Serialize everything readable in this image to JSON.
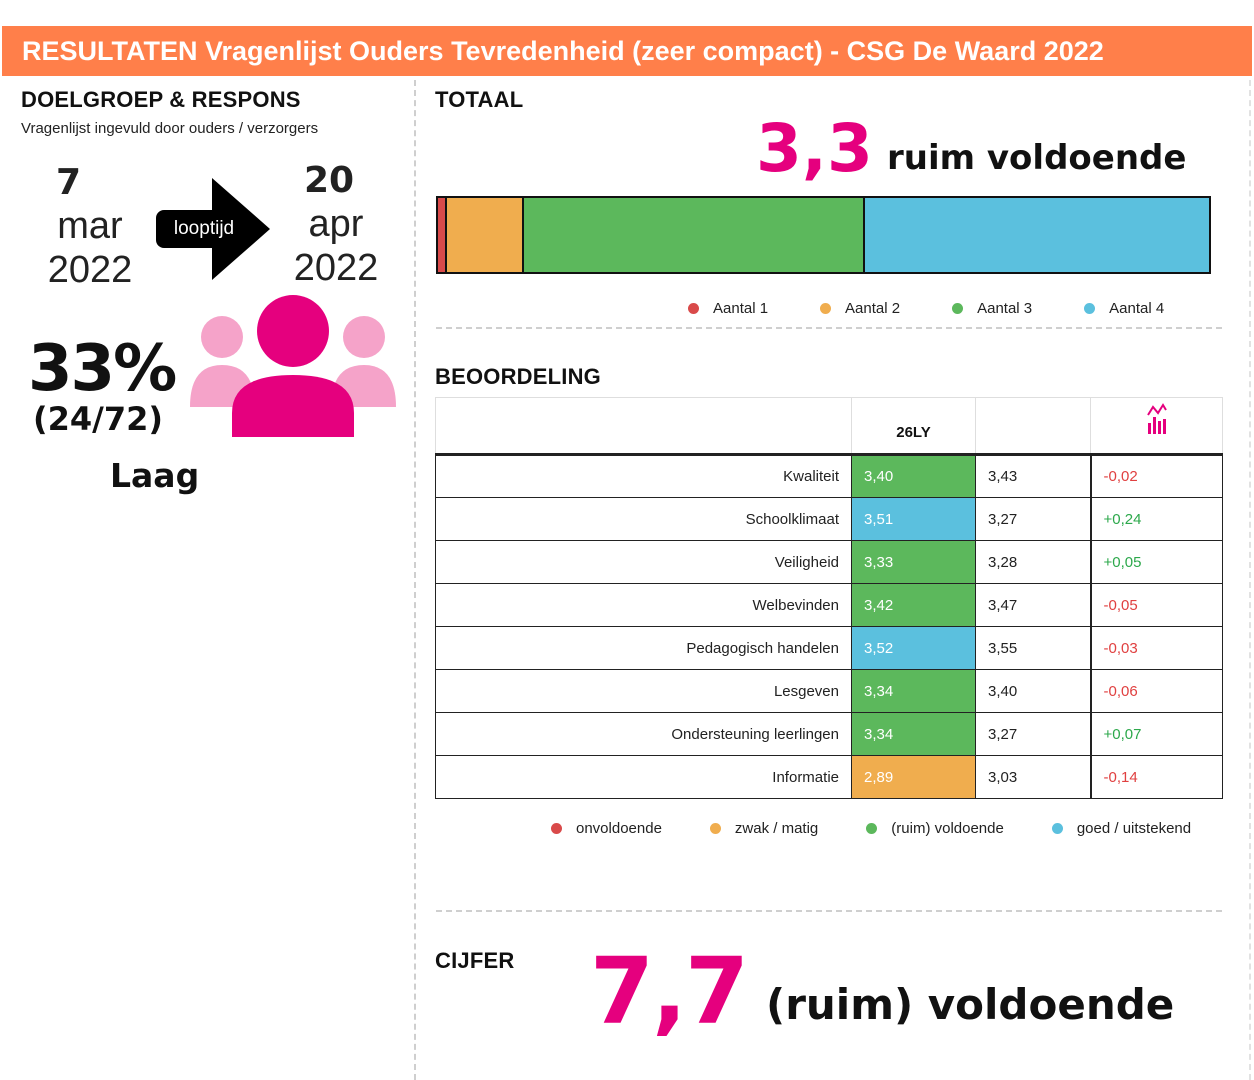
{
  "header": {
    "title": "RESULTATEN Vragenlijst Ouders Tevredenheid (zeer compact) - CSG De Waard 2022"
  },
  "left": {
    "title": "DOELGROEP & RESPONS",
    "subtitle": "Vragenlijst ingevuld door ouders / verzorgers",
    "start": {
      "day": "7",
      "month": "mar",
      "year": "2022"
    },
    "end": {
      "day": "20",
      "month": "apr",
      "year": "2022"
    },
    "arrow_label": "looptijd",
    "response_pct": "33%",
    "response_count": "(24/72)",
    "response_level": "Laag",
    "people_icon": "people-group-icon"
  },
  "totaal": {
    "title": "TOTAAL",
    "score": "3,3",
    "label": "ruim voldoende",
    "bar": [
      {
        "name": "Aantal 1",
        "value": 1.2,
        "color": "#d94a4a"
      },
      {
        "name": "Aantal 2",
        "value": 10,
        "color": "#f0ad4e"
      },
      {
        "name": "Aantal 3",
        "value": 44.2,
        "color": "#5cb85c"
      },
      {
        "name": "Aantal 4",
        "value": 44.6,
        "color": "#5bc0de"
      }
    ]
  },
  "beoordeling": {
    "title": "BEOORDELING",
    "col_header": "26LY",
    "trend_icon": "chart-trend-icon",
    "rows": [
      {
        "label": "Kwaliteit",
        "score": "3,40",
        "prev": "3,43",
        "diff": "-0,02",
        "color": "#5cb85c",
        "sign": "neg"
      },
      {
        "label": "Schoolklimaat",
        "score": "3,51",
        "prev": "3,27",
        "diff": "+0,24",
        "color": "#5bc0de",
        "sign": "pos"
      },
      {
        "label": "Veiligheid",
        "score": "3,33",
        "prev": "3,28",
        "diff": "+0,05",
        "color": "#5cb85c",
        "sign": "pos"
      },
      {
        "label": "Welbevinden",
        "score": "3,42",
        "prev": "3,47",
        "diff": "-0,05",
        "color": "#5cb85c",
        "sign": "neg"
      },
      {
        "label": "Pedagogisch handelen",
        "score": "3,52",
        "prev": "3,55",
        "diff": "-0,03",
        "color": "#5bc0de",
        "sign": "neg"
      },
      {
        "label": "Lesgeven",
        "score": "3,34",
        "prev": "3,40",
        "diff": "-0,06",
        "color": "#5cb85c",
        "sign": "neg"
      },
      {
        "label": "Ondersteuning leerlingen",
        "score": "3,34",
        "prev": "3,27",
        "diff": "+0,07",
        "color": "#5cb85c",
        "sign": "pos"
      },
      {
        "label": "Informatie",
        "score": "2,89",
        "prev": "3,03",
        "diff": "-0,14",
        "color": "#f0ad4e",
        "sign": "neg"
      }
    ],
    "legend": [
      {
        "name": "onvoldoende",
        "color": "#d94a4a"
      },
      {
        "name": "zwak / matig",
        "color": "#f0ad4e"
      },
      {
        "name": "(ruim) voldoende",
        "color": "#5cb85c"
      },
      {
        "name": "goed / uitstekend",
        "color": "#5bc0de"
      }
    ]
  },
  "cijfer": {
    "title": "CIJFER",
    "score": "7,7",
    "label": "(ruim) voldoende"
  },
  "colors": {
    "accent": "#e5007e",
    "header": "#ff7f4a",
    "people_light": "#f5a3c9"
  }
}
